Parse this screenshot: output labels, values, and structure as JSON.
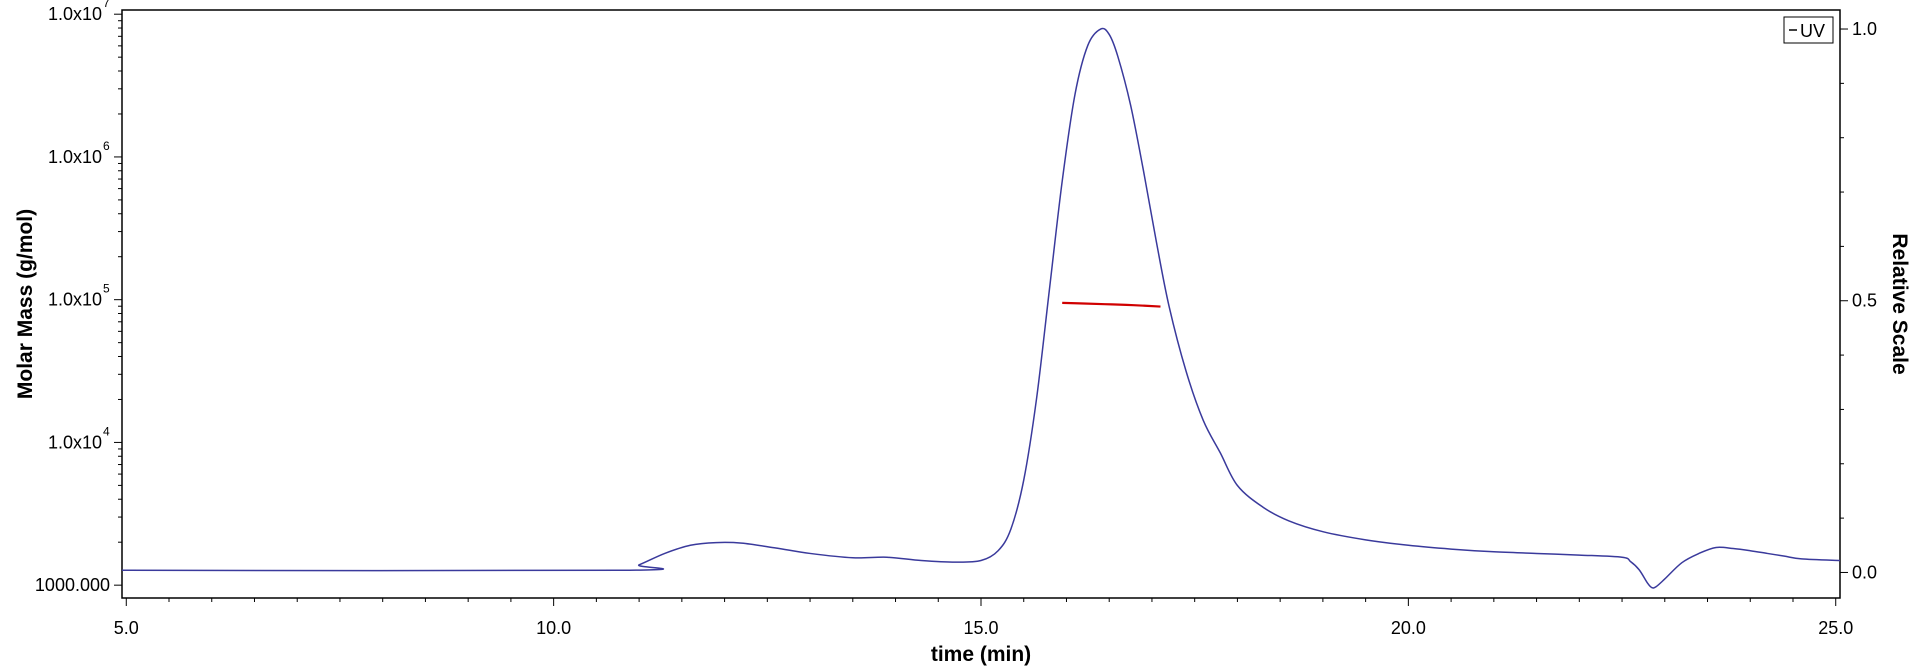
{
  "chart_data": {
    "type": "line",
    "title": "",
    "xlabel": "time (min)",
    "ylabel": "Molar Mass (g/mol)",
    "y2label": "Relative Scale",
    "xlim": [
      4.95,
      25.05
    ],
    "ylim": [
      813,
      10700000
    ],
    "ylog": true,
    "y2lim": [
      -0.047,
      1.035
    ],
    "x_ticks": [
      {
        "value": 5,
        "label": "5.0"
      },
      {
        "value": 10,
        "label": "10.0"
      },
      {
        "value": 15,
        "label": "15.0"
      },
      {
        "value": 20,
        "label": "20.0"
      },
      {
        "value": 25,
        "label": "25.0"
      }
    ],
    "y_ticks": [
      {
        "value": 1000,
        "label": "1000.000",
        "mantissa": "",
        "exponent": ""
      },
      {
        "value": 10000,
        "label": "",
        "mantissa": "1.0x10",
        "exponent": "4"
      },
      {
        "value": 100000,
        "label": "",
        "mantissa": "1.0x10",
        "exponent": "5"
      },
      {
        "value": 1000000,
        "label": "",
        "mantissa": "1.0x10",
        "exponent": "6"
      },
      {
        "value": 10000000,
        "label": "",
        "mantissa": "1.0x10",
        "exponent": "7"
      }
    ],
    "y2_ticks": [
      {
        "value": 0.0,
        "label": "0.0"
      },
      {
        "value": 0.5,
        "label": "0.5"
      },
      {
        "value": 1.0,
        "label": "1.0"
      }
    ],
    "legend": {
      "position": "top-right",
      "entries": [
        "UV"
      ]
    },
    "grid": false,
    "series": [
      {
        "name": "UV",
        "axis": "right",
        "color": "#3a3a9c",
        "x": [
          4.95,
          10.8,
          11.0,
          11.3,
          11.6,
          11.9,
          12.2,
          12.6,
          13.0,
          13.5,
          13.9,
          14.3,
          14.7,
          15.0,
          15.2,
          15.35,
          15.5,
          15.65,
          15.8,
          15.95,
          16.1,
          16.25,
          16.4,
          16.5,
          16.6,
          16.75,
          16.9,
          17.05,
          17.2,
          17.4,
          17.6,
          17.8,
          18.0,
          18.3,
          18.6,
          19.0,
          19.5,
          20.0,
          20.5,
          21.0,
          21.5,
          22.0,
          22.5,
          22.6,
          22.7,
          22.8,
          22.85,
          22.9,
          23.0,
          23.2,
          23.4,
          23.6,
          23.8,
          24.0,
          24.2,
          24.4,
          24.6,
          25.05
        ],
        "y": [
          0.004,
          0.004,
          0.014,
          0.035,
          0.05,
          0.055,
          0.054,
          0.045,
          0.035,
          0.027,
          0.028,
          0.022,
          0.019,
          0.022,
          0.04,
          0.08,
          0.17,
          0.32,
          0.52,
          0.72,
          0.88,
          0.97,
          1.0,
          0.99,
          0.95,
          0.86,
          0.74,
          0.61,
          0.49,
          0.37,
          0.28,
          0.22,
          0.16,
          0.12,
          0.095,
          0.075,
          0.06,
          0.05,
          0.043,
          0.038,
          0.035,
          0.032,
          0.028,
          0.02,
          0.005,
          -0.02,
          -0.028,
          -0.026,
          -0.012,
          0.018,
          0.035,
          0.046,
          0.044,
          0.04,
          0.035,
          0.03,
          0.025,
          0.022
        ]
      },
      {
        "name": "",
        "axis": "left",
        "color": "#d00000",
        "x": [
          15.95,
          16.2,
          16.45,
          16.7,
          16.95,
          17.1
        ],
        "y": [
          95000,
          94000,
          93000,
          92000,
          90500,
          89500
        ]
      }
    ]
  }
}
